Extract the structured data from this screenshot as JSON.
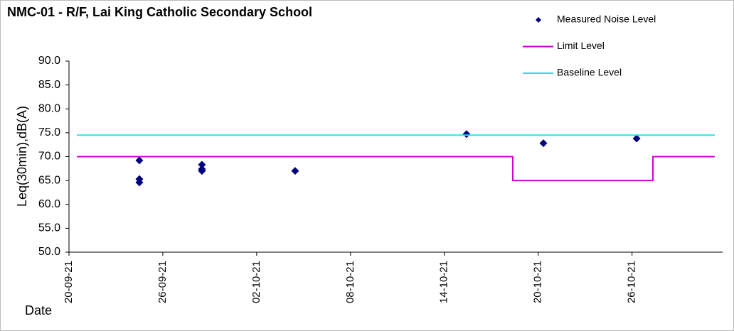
{
  "chart_data": {
    "type": "scatter",
    "title": "NMC-01 - R/F, Lai King Catholic Secondary School",
    "y_label": "Leq(30min),dB(A)",
    "x_label": "Date",
    "xlim": [
      "2021-09-20T00:00",
      "2021-10-31T19:00"
    ],
    "xticks": [
      {
        "value": "2021-09-20T00:00",
        "label": "20-09-21"
      },
      {
        "value": "2021-09-26T00:00",
        "label": "26-09-21"
      },
      {
        "value": "2021-10-02T00:00",
        "label": "02-10-21"
      },
      {
        "value": "2021-10-08T00:00",
        "label": "08-10-21"
      },
      {
        "value": "2021-10-14T00:00",
        "label": "14-10-21"
      },
      {
        "value": "2021-10-20T00:00",
        "label": "20-10-21"
      },
      {
        "value": "2021-10-26T00:00",
        "label": "26-10-21"
      }
    ],
    "ylim": [
      50,
      90
    ],
    "yticks": [
      {
        "value": 50,
        "label": "50.0"
      },
      {
        "value": 55,
        "label": "55.0"
      },
      {
        "value": 60,
        "label": "60.0"
      },
      {
        "value": 65,
        "label": "65.0"
      },
      {
        "value": 70,
        "label": "70.0"
      },
      {
        "value": 75,
        "label": "75.0"
      },
      {
        "value": 80,
        "label": "80.0"
      },
      {
        "value": 85,
        "label": "85.0"
      },
      {
        "value": 90,
        "label": "90.0"
      }
    ],
    "legend": "top-right",
    "series": [
      {
        "name": "Measured Noise Level",
        "type": "scatter",
        "color": "#000080",
        "x": [
          "2021-09-24T12:00",
          "2021-09-24T12:00",
          "2021-09-24T12:00",
          "2021-09-28T12:00",
          "2021-09-28T12:00",
          "2021-09-28T12:00",
          "2021-10-04T11:00",
          "2021-10-15T10:00",
          "2021-10-20T08:00",
          "2021-10-26T07:00"
        ],
        "values": [
          69.2,
          65.3,
          64.6,
          68.3,
          67.4,
          67.0,
          67.0,
          74.7,
          72.8,
          73.8
        ]
      },
      {
        "name": "Limit Level",
        "type": "line",
        "color": "#cc00cc",
        "x": [
          "2021-09-20T12:00",
          "2021-10-18T09:00",
          "2021-10-18T09:00",
          "2021-10-27T08:00",
          "2021-10-27T08:00",
          "2021-10-31T07:00"
        ],
        "values": [
          70,
          70,
          65,
          65,
          70,
          70
        ]
      },
      {
        "name": "Baseline Level",
        "type": "line",
        "color": "#33e0e0",
        "x": [
          "2021-09-20T12:00",
          "2021-10-31T07:00"
        ],
        "values": [
          74.5,
          74.5
        ]
      }
    ]
  }
}
